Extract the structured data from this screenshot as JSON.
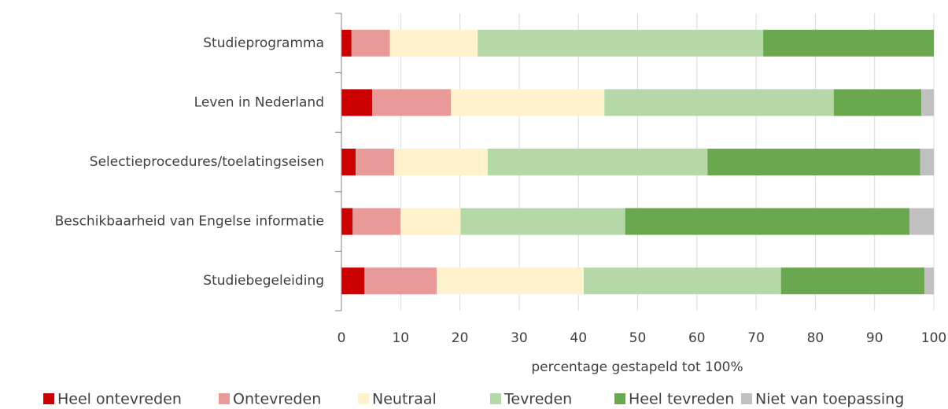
{
  "chart_data": {
    "type": "stacked_barh",
    "xlabel": "percentage gestapeld tot 100%",
    "categories": [
      "Studieprogramma",
      "Leven in Nederland",
      "Selectieprocedures/toelatingseisen",
      "Beschikbaarheid van Engelse informatie",
      "Studiebegeleiding"
    ],
    "series": [
      {
        "name": "Heel ontevreden",
        "color": "#cc0000",
        "values": [
          1.7,
          5.2,
          2.4,
          1.9,
          3.9
        ]
      },
      {
        "name": "Ontevreden",
        "color": "#ea9999",
        "values": [
          6.5,
          13.3,
          6.5,
          8.1,
          12.2
        ]
      },
      {
        "name": "Neutraal",
        "color": "#fff2cc",
        "values": [
          14.8,
          25.9,
          15.8,
          10.1,
          24.8
        ]
      },
      {
        "name": "Tevreden",
        "color": "#b6d7a8",
        "values": [
          48.2,
          38.7,
          37.1,
          27.8,
          33.3
        ]
      },
      {
        "name": "Heel tevreden",
        "color": "#6aa84f",
        "values": [
          28.8,
          14.8,
          35.9,
          48.0,
          24.2
        ]
      },
      {
        "name": "Niet van toepassing",
        "color": "#c0c0c0",
        "values": [
          0,
          2.1,
          2.3,
          4.1,
          1.6
        ]
      }
    ],
    "xlim": [
      0,
      100
    ],
    "xticks": [
      0,
      10,
      20,
      30,
      40,
      50,
      60,
      70,
      80,
      90,
      100
    ],
    "grid": true
  }
}
